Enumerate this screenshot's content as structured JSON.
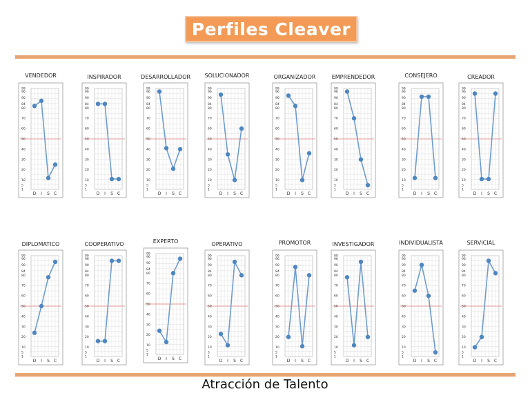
{
  "header": {
    "title": "Perfiles Cleaver"
  },
  "footer": {
    "text": "Atracción de Talento"
  },
  "colors": {
    "accent": "#f29a56",
    "rule": "#e8a574",
    "line": "#6e9ccc",
    "point": "#4f86c0",
    "midline": "#e07a7a"
  },
  "chart_data": [
    {
      "type": "line",
      "title": "VENDEDOR",
      "categories": [
        "D",
        "I",
        "S",
        "C"
      ],
      "values": [
        82,
        87,
        12,
        25
      ]
    },
    {
      "type": "line",
      "title": "INSPIRADOR",
      "categories": [
        "D",
        "I",
        "S",
        "C"
      ],
      "values": [
        84,
        84,
        11,
        11
      ]
    },
    {
      "type": "line",
      "title": "DESARROLLADOR",
      "categories": [
        "D",
        "I",
        "S",
        "C"
      ],
      "values": [
        96,
        41,
        21,
        40
      ]
    },
    {
      "type": "line",
      "title": "SOLUCIONADOR",
      "categories": [
        "D",
        "I",
        "S",
        "C"
      ],
      "values": [
        93,
        35,
        10,
        60
      ]
    },
    {
      "type": "line",
      "title": "ORGANIZADOR",
      "categories": [
        "D",
        "I",
        "S",
        "C"
      ],
      "values": [
        92,
        82,
        10,
        36
      ]
    },
    {
      "type": "line",
      "title": "EMPRENDEDOR",
      "categories": [
        "D",
        "I",
        "S",
        "C"
      ],
      "values": [
        96,
        70,
        30,
        5
      ]
    },
    {
      "type": "line",
      "title": "CONSEJERO",
      "categories": [
        "D",
        "I",
        "S",
        "C"
      ],
      "values": [
        12,
        91,
        91,
        12
      ]
    },
    {
      "type": "line",
      "title": "CREADOR",
      "categories": [
        "D",
        "I",
        "S",
        "C"
      ],
      "values": [
        94,
        11,
        11,
        94
      ]
    },
    {
      "type": "line",
      "title": "DIPLOMATICO",
      "categories": [
        "D",
        "I",
        "S",
        "C"
      ],
      "values": [
        24,
        50,
        78,
        93
      ]
    },
    {
      "type": "line",
      "title": "COOPERATIVO",
      "categories": [
        "D",
        "I",
        "S",
        "C"
      ],
      "values": [
        16,
        16,
        94,
        94
      ]
    },
    {
      "type": "line",
      "title": "EXPERTO",
      "categories": [
        "D",
        "I",
        "S",
        "C"
      ],
      "values": [
        24,
        13,
        80,
        94
      ]
    },
    {
      "type": "line",
      "title": "OPERATIVO",
      "categories": [
        "D",
        "I",
        "S",
        "C"
      ],
      "values": [
        23,
        12,
        93,
        80
      ]
    },
    {
      "type": "line",
      "title": "PROMOTOR",
      "categories": [
        "D",
        "I",
        "S",
        "C"
      ],
      "values": [
        20,
        88,
        11,
        80
      ]
    },
    {
      "type": "line",
      "title": "INVESTIGADOR",
      "categories": [
        "D",
        "I",
        "S",
        "C"
      ],
      "values": [
        78,
        12,
        93,
        20
      ]
    },
    {
      "type": "line",
      "title": "INDIVIDUALISTA",
      "categories": [
        "D",
        "I",
        "S",
        "C"
      ],
      "values": [
        65,
        90,
        60,
        5
      ]
    },
    {
      "type": "line",
      "title": "SERVICIAL",
      "categories": [
        "D",
        "I",
        "S",
        "C"
      ],
      "values": [
        10,
        20,
        94,
        82
      ]
    }
  ],
  "scale_ticks": [
    "99",
    "96",
    "90",
    "84",
    "80",
    "70",
    "60",
    "50",
    "40",
    "30",
    "20",
    "10",
    "5",
    "1"
  ]
}
